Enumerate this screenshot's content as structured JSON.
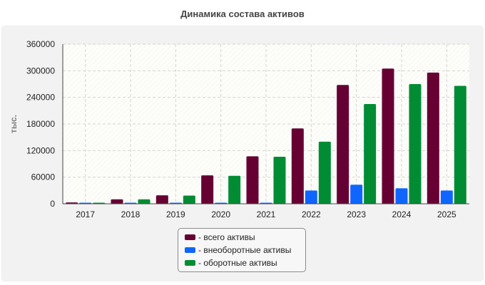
{
  "chart_data": {
    "type": "bar",
    "title": "Динамика состава активов",
    "ylabel": "тыс.",
    "xlabel": "",
    "categories": [
      "2017",
      "2018",
      "2019",
      "2020",
      "2021",
      "2022",
      "2023",
      "2024",
      "2025"
    ],
    "series": [
      {
        "name": "- всего активы",
        "color": "#660033",
        "values": [
          3000,
          10000,
          19000,
          64000,
          107000,
          170000,
          268000,
          305000,
          296000
        ]
      },
      {
        "name": "- внеоборотные активы",
        "color": "#0f66ff",
        "values": [
          500,
          500,
          1000,
          1000,
          1000,
          30000,
          43000,
          35000,
          30000
        ]
      },
      {
        "name": "- оборотные активы",
        "color": "#008c33",
        "values": [
          2500,
          10000,
          18500,
          63000,
          106000,
          140000,
          225000,
          270000,
          266000
        ]
      }
    ],
    "ylim": [
      0,
      360000
    ],
    "yticks": [
      0,
      60000,
      120000,
      180000,
      240000,
      300000,
      360000
    ],
    "grid": true,
    "legend_position": "bottom-center"
  }
}
